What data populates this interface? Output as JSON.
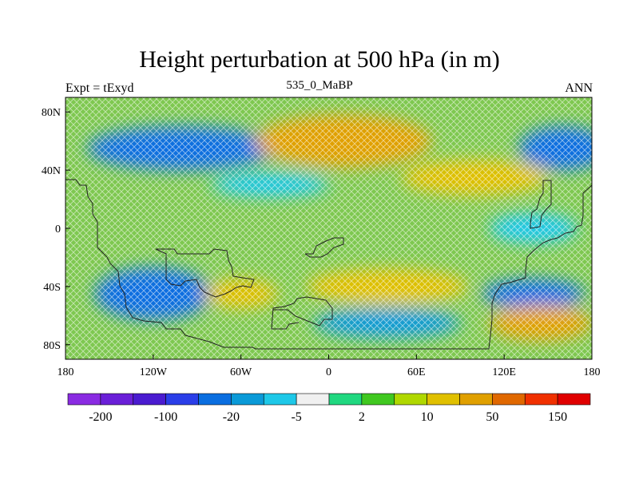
{
  "title": "Height perturbation at 500 hPa (in m)",
  "left_label": "Expt = tExyd",
  "center_label": "535_0_MaBP",
  "right_label": "ANN",
  "map": {
    "projection": "cylindrical equidistant",
    "lon_range": [
      -180,
      180
    ],
    "lat_range": [
      -90,
      90
    ],
    "fill_pattern": "cross-hatched contour fill",
    "x_ticks": [
      "180",
      "120W",
      "60W",
      "0",
      "60E",
      "120E",
      "180"
    ],
    "y_ticks": [
      "80N",
      "40N",
      "0",
      "40S",
      "80S"
    ]
  },
  "field_regions": [
    {
      "lon": -100,
      "lat": 55,
      "value": -30,
      "rx": 65,
      "ry": 15
    },
    {
      "lon": -40,
      "lat": 30,
      "value": -10,
      "rx": 40,
      "ry": 8
    },
    {
      "lon": 10,
      "lat": 60,
      "value": 60,
      "rx": 60,
      "ry": 18
    },
    {
      "lon": 100,
      "lat": 35,
      "value": 40,
      "rx": 50,
      "ry": 12
    },
    {
      "lon": 160,
      "lat": 55,
      "value": -30,
      "rx": 30,
      "ry": 15
    },
    {
      "lon": -120,
      "lat": -45,
      "value": -40,
      "rx": 40,
      "ry": 18
    },
    {
      "lon": -60,
      "lat": -45,
      "value": 40,
      "rx": 25,
      "ry": 10
    },
    {
      "lon": 40,
      "lat": -40,
      "value": 40,
      "rx": 55,
      "ry": 12
    },
    {
      "lon": 40,
      "lat": -65,
      "value": -20,
      "rx": 50,
      "ry": 10
    },
    {
      "lon": 140,
      "lat": -45,
      "value": -40,
      "rx": 35,
      "ry": 10
    },
    {
      "lon": 145,
      "lat": -65,
      "value": 60,
      "rx": 35,
      "ry": 12
    },
    {
      "lon": 140,
      "lat": 0,
      "value": -10,
      "rx": 30,
      "ry": 10
    }
  ],
  "colorbar": {
    "colors": [
      "#8a2be2",
      "#6a1fd8",
      "#4a1bd0",
      "#2a3ee8",
      "#0a6ee0",
      "#0a9ad8",
      "#1ec8e8",
      "#f0f0f0",
      "#20d880",
      "#40c820",
      "#b0d800",
      "#e0c000",
      "#e0a000",
      "#e06800",
      "#f03000",
      "#e00000"
    ],
    "labels": [
      "-200",
      "-100",
      "-20",
      "-5",
      "2",
      "10",
      "50",
      "150"
    ]
  }
}
